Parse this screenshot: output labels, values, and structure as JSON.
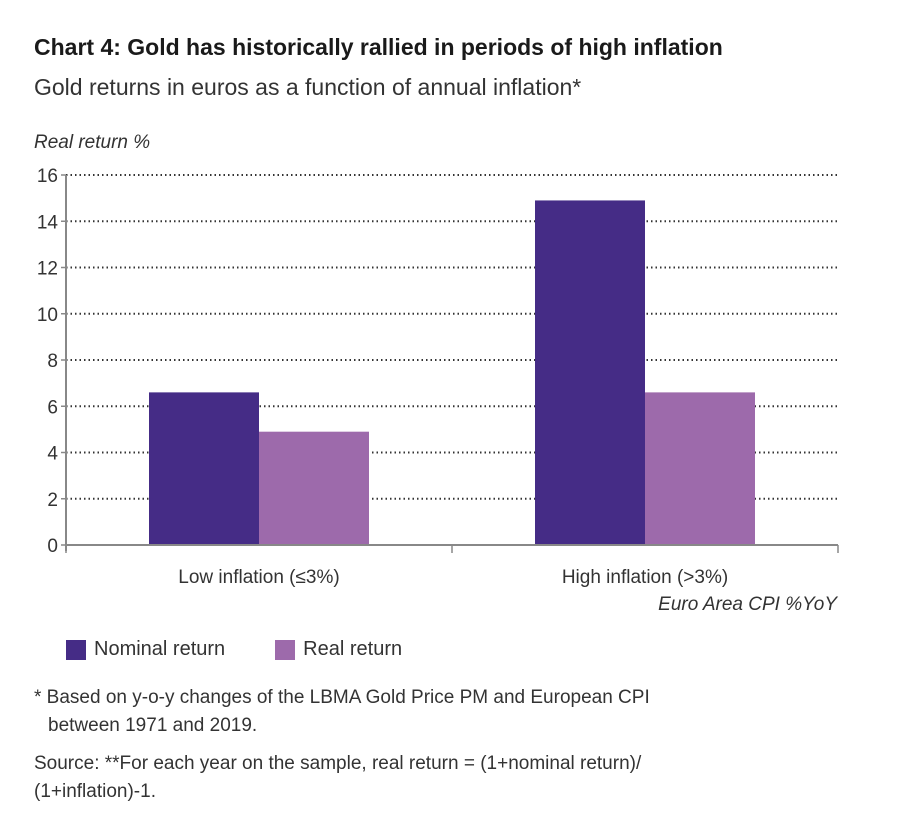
{
  "header": {
    "title": "Chart 4: Gold has historically rallied in periods of high inflation",
    "subtitle": "Gold returns in euros as a function of annual inflation*"
  },
  "chart_data": {
    "type": "bar",
    "title": "Chart 4: Gold has historically rallied in periods of high inflation",
    "subtitle": "Gold returns in euros as a function of annual inflation*",
    "ylabel": "Real return %",
    "xlabel": "Euro Area CPI %YoY",
    "categories": [
      "Low inflation (≤3%)",
      "High inflation (>3%)"
    ],
    "series": [
      {
        "name": "Nominal return",
        "color": "#452c86",
        "values": [
          6.6,
          14.9
        ]
      },
      {
        "name": "Real return",
        "color": "#9d6aab",
        "values": [
          4.9,
          6.6
        ]
      }
    ],
    "ylim": [
      0,
      16
    ],
    "yticks": [
      0,
      2,
      4,
      6,
      8,
      10,
      12,
      14,
      16
    ],
    "grid": true,
    "legend_position": "bottom-left"
  },
  "legend": {
    "items": [
      {
        "label": "Nominal return",
        "color": "#452c86"
      },
      {
        "label": "Real return",
        "color": "#9d6aab"
      }
    ]
  },
  "footnote": {
    "line1": "* Based on y-o-y changes of the LBMA Gold Price PM and European CPI",
    "line2": "between 1971 and 2019."
  },
  "source": {
    "line1": "Source: **For each year on the sample, real return = (1+nominal return)/",
    "line2": "(1+inflation)-1."
  }
}
